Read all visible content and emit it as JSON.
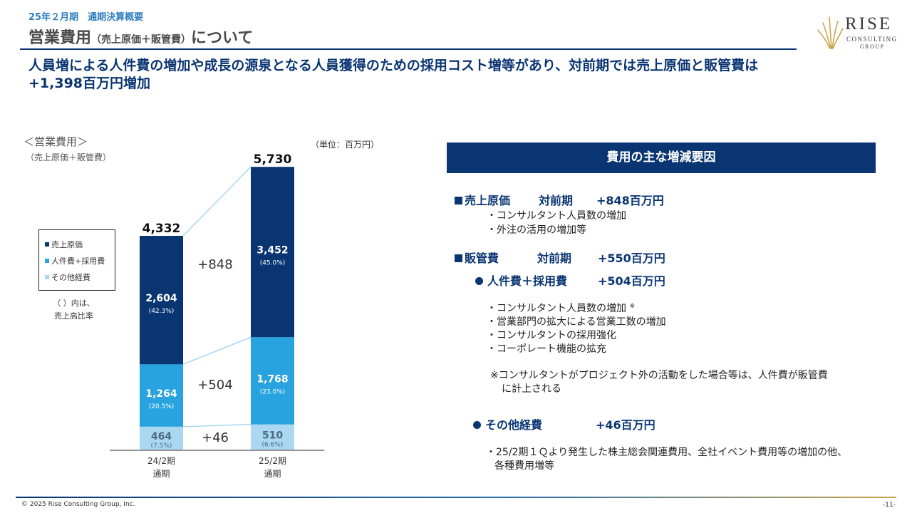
{
  "header": {
    "subtitle": "25年２月期　通期決算概要",
    "title": "営業費用",
    "title_paren": "（売上原価＋販管費）",
    "title_suffix": "について"
  },
  "logo": {
    "main": "RISE",
    "sub1": "CONSULTING",
    "sub2": "GROUP"
  },
  "headline": {
    "line1": "人員増による人件費の増加や成長の源泉となる人員獲得のための採用コスト増等があり、対前期では売上原価と販管費は",
    "line2": "+1,398百万円増加"
  },
  "chart_data": {
    "type": "bar",
    "stacked": true,
    "title": "＜営業費用＞",
    "subtitle": "（売上原価＋販管費）",
    "unit": "（単位：百万円）",
    "categories": [
      "24/2期\n通期",
      "25/2期\n通期"
    ],
    "category_lines": [
      [
        "24/2期",
        "通期"
      ],
      [
        "25/2期",
        "通期"
      ]
    ],
    "series": [
      {
        "name": "その他経費",
        "values": [
          464,
          510
        ],
        "ratio_labels": [
          "(7.5%)",
          "(6.6%)"
        ],
        "value_labels": [
          "464",
          "510"
        ],
        "color": "#a9d8f0"
      },
      {
        "name": "人件費+採用費",
        "values": [
          1264,
          1768
        ],
        "ratio_labels": [
          "(20.5%)",
          "(23.0%)"
        ],
        "value_labels": [
          "1,264",
          "1,768"
        ],
        "color": "#29a3df"
      },
      {
        "name": "売上原価",
        "values": [
          2604,
          3452
        ],
        "ratio_labels": [
          "(42.3%)",
          "(45.0%)"
        ],
        "value_labels": [
          "2,604",
          "3,452"
        ],
        "color": "#0a3573"
      }
    ],
    "totals": [
      4332,
      5730
    ],
    "total_labels": [
      "4,332",
      "5,730"
    ],
    "differences": [
      {
        "series": "その他経費",
        "label": "+46"
      },
      {
        "series": "人件費+採用費",
        "label": "+504"
      },
      {
        "series": "売上原価",
        "label": "+848"
      }
    ],
    "legend_order": [
      "売上原価",
      "人件費+採用費",
      "その他経費"
    ],
    "legend_placement": "left",
    "note_line1": "（ ）内は、",
    "note_line2": "売上高比率",
    "grid": false
  },
  "panel": {
    "heading": "費用の主な増減要因",
    "cogs": {
      "label": "売上原価",
      "vs": "対前期",
      "value": "+848百万円",
      "items": [
        "・コンサルタント人員数の増加",
        "・外注の活用の増加等"
      ]
    },
    "sga": {
      "label": "販管費",
      "vs": "対前期",
      "value": "+550百万円"
    },
    "personnel": {
      "label": "人件費＋採用費",
      "value": "+504百万円",
      "items": [
        "・コンサルタント人員数の増加",
        "・営業部門の拡大による営業工数の増加",
        "・コンサルタントの採用強化",
        "・コーポレート機能の拡充"
      ],
      "mark": "※",
      "note_line1": "※コンサルタントがプロジェクト外の活動をした場合等は、人件費が販管費",
      "note_line2": "に計上される"
    },
    "other": {
      "label": "その他経費",
      "value": "+46百万円",
      "items_line1": "・25/2期１Ｑより発生した株主総会関連費用、全社イベント費用等の増加の他、",
      "items_line2": "各種費用増等"
    }
  },
  "footer": {
    "copyright": "© 2025 Rise Consulting Group, Inc.",
    "page": "-11-"
  }
}
